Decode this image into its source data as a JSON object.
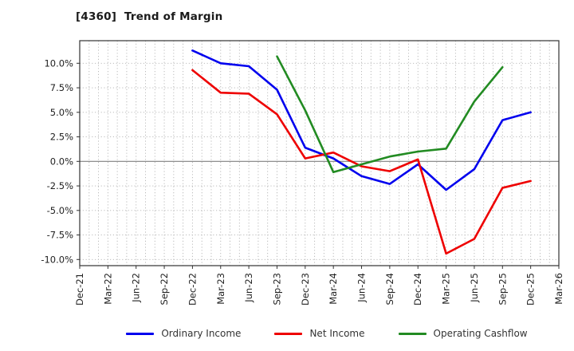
{
  "title": "[4360]  Trend of Margin",
  "chart_data": {
    "type": "line",
    "title": "[4360]  Trend of Margin",
    "unit": "%",
    "categories": [
      "Dec-21",
      "Mar-22",
      "Jun-22",
      "Sep-22",
      "Dec-22",
      "Mar-23",
      "Jun-23",
      "Sep-23",
      "Dec-23",
      "Mar-24",
      "Jun-24",
      "Sep-24",
      "Dec-24",
      "Mar-25",
      "Jun-25",
      "Sep-25",
      "Dec-25",
      "Mar-26"
    ],
    "y_ticks": [
      10,
      7.5,
      5,
      2.5,
      0,
      -2.5,
      -5,
      -7.5,
      -10
    ],
    "y_tick_labels": [
      "10.0%",
      "7.5%",
      "5.0%",
      "2.5%",
      "0.0%",
      "-2.5%",
      "-5.0%",
      "-7.5%",
      "-10.0%"
    ],
    "ylim": [
      -10.6,
      12.3
    ],
    "grid": "dotted gray, monthly vertical minor gridlines, solid zero line",
    "legend_position": "bottom",
    "series": [
      {
        "name": "Ordinary Income",
        "color": "#0000ee",
        "values": [
          null,
          null,
          null,
          null,
          11.3,
          10.0,
          9.7,
          7.3,
          1.4,
          0.3,
          -1.5,
          -2.3,
          -0.3,
          -2.9,
          -0.8,
          4.2,
          5.0,
          null
        ]
      },
      {
        "name": "Net Income",
        "color": "#ee0000",
        "values": [
          null,
          null,
          null,
          null,
          9.3,
          7.0,
          6.9,
          4.8,
          0.3,
          0.9,
          -0.5,
          -1.0,
          0.2,
          -9.4,
          -7.9,
          -2.7,
          -2.0,
          null
        ]
      },
      {
        "name": "Operating Cashflow",
        "color": "#228b22",
        "values": [
          null,
          null,
          null,
          null,
          null,
          null,
          null,
          10.7,
          5.2,
          -1.1,
          -0.3,
          0.5,
          1.0,
          1.3,
          6.1,
          9.6,
          null,
          null
        ]
      }
    ],
    "colors": {
      "grid": "#b3b3b3",
      "zero_line": "#808080",
      "axis_border": "#333333",
      "tick_text": "#222222"
    }
  }
}
